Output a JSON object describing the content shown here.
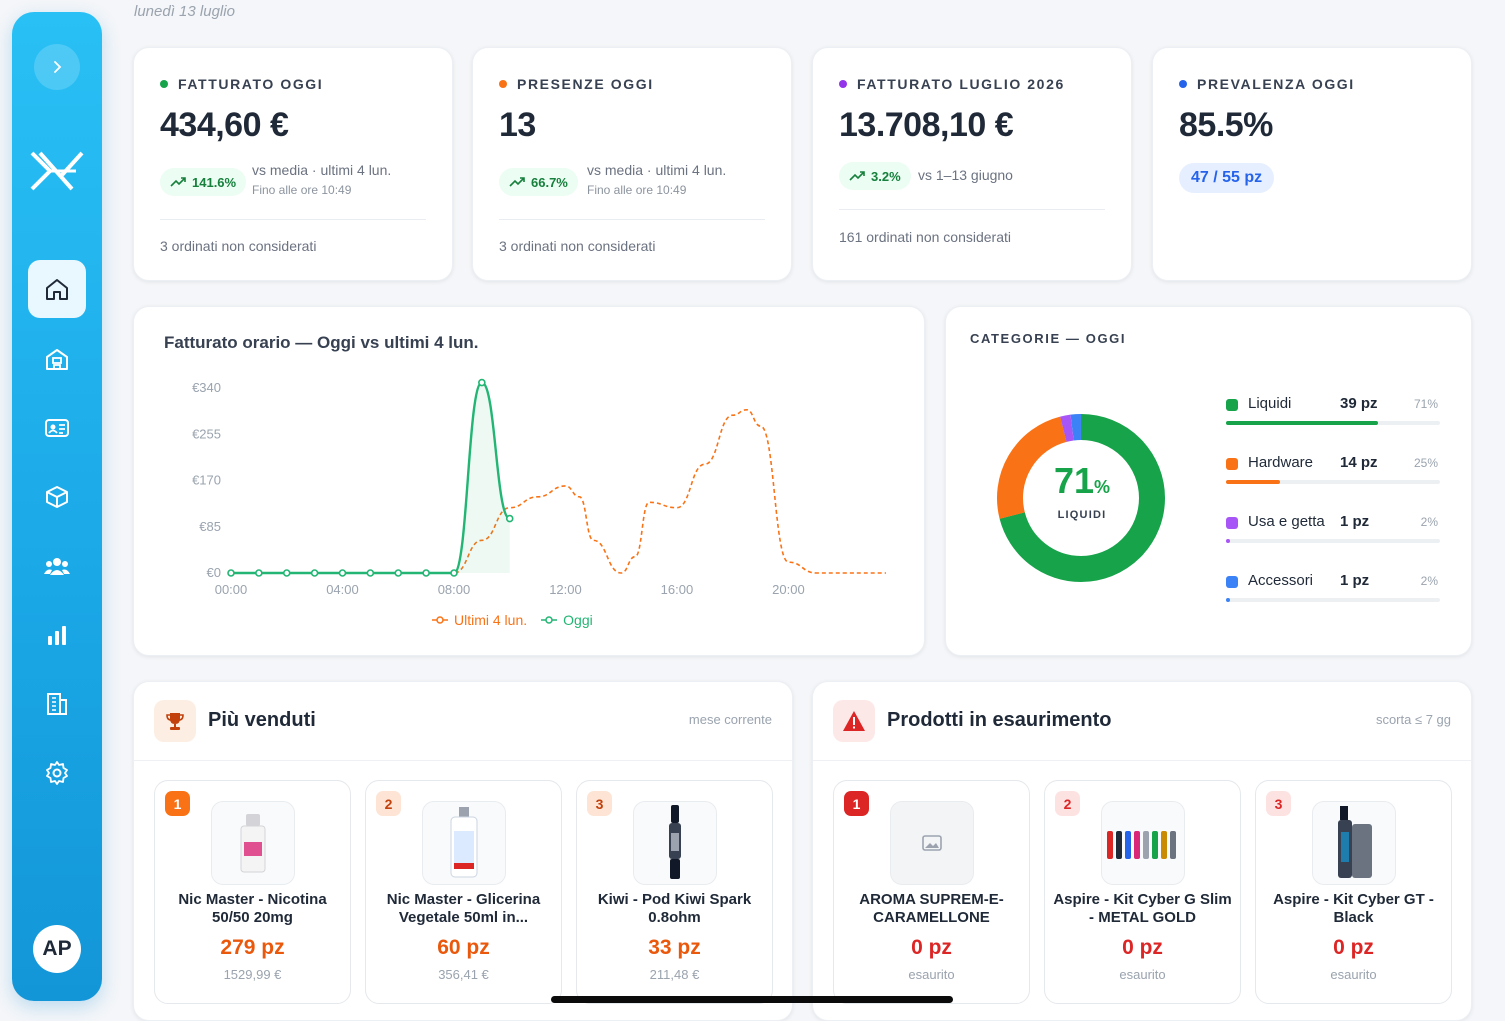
{
  "date": "lunedì 13 luglio",
  "user": {
    "initials": "AP"
  },
  "kpis": [
    {
      "title": "FATTURATO OGGI",
      "dot_color": "#16a34a",
      "value": "434,60 €",
      "trend": "141.6%",
      "cmp": "vs media · ultimi 4 lun.",
      "sub": "Fino alle ore 10:49",
      "foot": "3 ordinati non considerati"
    },
    {
      "title": "PRESENZE OGGI",
      "dot_color": "#f97316",
      "value": "13",
      "trend": "66.7%",
      "cmp": "vs media · ultimi 4 lun.",
      "sub": "Fino alle ore 10:49",
      "foot": "3 ordinati non considerati"
    },
    {
      "title": "FATTURATO LUGLIO 2026",
      "dot_color": "#9333ea",
      "value": "13.708,10 €",
      "trend": "3.2%",
      "cmp": "vs 1–13 giugno",
      "foot": "161 ordinati non considerati"
    },
    {
      "title": "PREVALENZA OGGI",
      "dot_color": "#2563eb",
      "value": "85.5%",
      "badge": "47 / 55 pz"
    }
  ],
  "chart": {
    "title": "Fatturato orario — Oggi vs ultimi 4 lun.",
    "legend": {
      "past": "Ultimi 4 lun.",
      "today": "Oggi"
    }
  },
  "chart_data": {
    "type": "line",
    "ylim": [
      0,
      340
    ],
    "yticks": [
      "€0",
      "€85",
      "€170",
      "€255",
      "€340"
    ],
    "xticks": [
      "00:00",
      "04:00",
      "08:00",
      "12:00",
      "16:00",
      "20:00"
    ],
    "xlim": [
      0,
      23.5
    ],
    "series": [
      {
        "name": "Ultimi 4 lun.",
        "color": "#f97316",
        "x": [
          0,
          8,
          9,
          10,
          11,
          12,
          12.5,
          13,
          14,
          14.5,
          15,
          16,
          17,
          18,
          18.5,
          19,
          20,
          21,
          22,
          23.5
        ],
        "y": [
          0,
          0,
          60,
          120,
          140,
          160,
          140,
          60,
          0,
          30,
          130,
          120,
          200,
          290,
          300,
          270,
          20,
          0,
          0,
          0
        ]
      },
      {
        "name": "Oggi",
        "color": "#22b573",
        "x": [
          0,
          1,
          2,
          3,
          4,
          5,
          6,
          7,
          8,
          9,
          10
        ],
        "y": [
          0,
          0,
          0,
          0,
          0,
          0,
          0,
          0,
          0,
          350,
          100
        ]
      }
    ]
  },
  "categories": {
    "title": "CATEGORIE — OGGI",
    "center_pct": "71",
    "center_pct_unit": "%",
    "center_label": "LIQUIDI",
    "items": [
      {
        "name": "Liquidi",
        "qty": "39 pz",
        "pct": "71%",
        "value": 0.71,
        "color": "#16a34a"
      },
      {
        "name": "Hardware",
        "qty": "14 pz",
        "pct": "25%",
        "value": 0.25,
        "color": "#f97316"
      },
      {
        "name": "Usa e getta",
        "qty": "1 pz",
        "pct": "2%",
        "value": 0.02,
        "color": "#a855f7"
      },
      {
        "name": "Accessori",
        "qty": "1 pz",
        "pct": "2%",
        "value": 0.02,
        "color": "#3b82f6"
      }
    ]
  },
  "best_sellers": {
    "title": "Più venduti",
    "note": "mese corrente",
    "items": [
      {
        "rank": "1",
        "name": "Nic Master - Nicotina 50/50 20mg",
        "qty": "279 pz",
        "sub": "1529,99 €"
      },
      {
        "rank": "2",
        "name": "Nic Master - Glicerina Vegetale 50ml in...",
        "qty": "60 pz",
        "sub": "356,41 €"
      },
      {
        "rank": "3",
        "name": "Kiwi - Pod Kiwi Spark 0.8ohm",
        "qty": "33 pz",
        "sub": "211,48 €"
      }
    ]
  },
  "low_stock": {
    "title": "Prodotti in esaurimento",
    "note": "scorta ≤ 7 gg",
    "items": [
      {
        "rank": "1",
        "name": "AROMA SUPREM-E-CARAMELLONE",
        "qty": "0 pz",
        "sub": "esaurito"
      },
      {
        "rank": "2",
        "name": "Aspire - Kit Cyber G Slim - METAL GOLD",
        "qty": "0 pz",
        "sub": "esaurito"
      },
      {
        "rank": "3",
        "name": "Aspire - Kit Cyber GT - Black",
        "qty": "0 pz",
        "sub": "esaurito"
      }
    ]
  }
}
